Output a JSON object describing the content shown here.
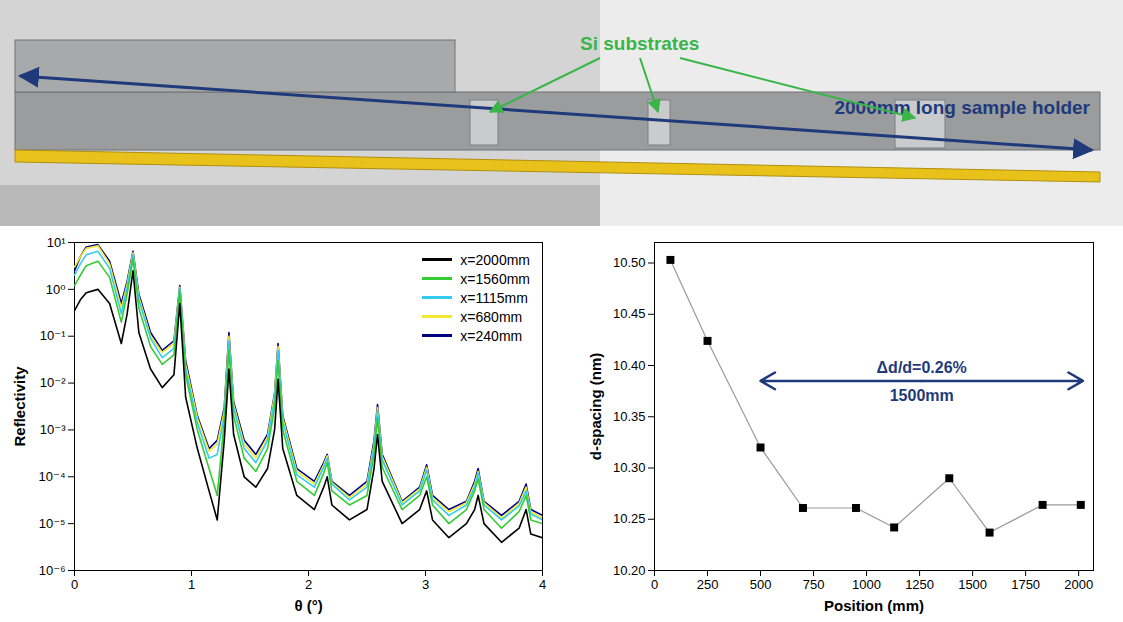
{
  "photo": {
    "annotations": [
      {
        "text": "Si substrates",
        "color": "#39b54a"
      },
      {
        "text": "2000mm long sample holder",
        "color": "#1f3a7a"
      }
    ]
  },
  "chart_data": [
    {
      "type": "line",
      "xlabel": "θ (°)",
      "ylabel": "Reflectivity",
      "log": "y",
      "legend": "top-right",
      "xlim": [
        0,
        4
      ],
      "xticks": [
        0,
        1,
        2,
        3,
        4
      ],
      "ylim": [
        1e-06,
        10
      ],
      "yticks": [
        {
          "value": 1e-06,
          "label": "10⁻⁶"
        },
        {
          "value": 1e-05,
          "label": "10⁻⁵"
        },
        {
          "value": 0.0001,
          "label": "10⁻⁴"
        },
        {
          "value": 0.001,
          "label": "10⁻³"
        },
        {
          "value": 0.01,
          "label": "10⁻²"
        },
        {
          "value": 0.1,
          "label": "10⁻¹"
        },
        {
          "value": 1,
          "label": "10⁰"
        },
        {
          "value": 10,
          "label": "10¹"
        }
      ],
      "x": [
        0,
        0.05,
        0.1,
        0.2,
        0.3,
        0.4,
        0.45,
        0.5,
        0.55,
        0.65,
        0.75,
        0.85,
        0.9,
        0.95,
        1.05,
        1.15,
        1.22,
        1.28,
        1.32,
        1.36,
        1.45,
        1.55,
        1.65,
        1.71,
        1.74,
        1.78,
        1.9,
        2.05,
        2.13,
        2.16,
        2.2,
        2.35,
        2.5,
        2.56,
        2.59,
        2.63,
        2.8,
        2.95,
        3.01,
        3.06,
        3.2,
        3.35,
        3.42,
        3.45,
        3.5,
        3.65,
        3.8,
        3.86,
        3.9,
        4.0
      ],
      "series": [
        {
          "name": "x=2000mm",
          "color": "#000000",
          "values": [
            0.35,
            0.6,
            0.85,
            1,
            0.5,
            0.07,
            0.3,
            2.5,
            0.12,
            0.02,
            0.008,
            0.015,
            0.5,
            0.005,
            0.0004,
            5e-05,
            1.2e-05,
            0.0006,
            0.02,
            0.0008,
            0.0001,
            6e-05,
            0.00015,
            0.001,
            0.012,
            0.0004,
            4e-05,
            2e-05,
            6e-05,
            0.0001,
            2.5e-05,
            1.2e-05,
            2e-05,
            0.00015,
            0.0008,
            8e-05,
            1e-05,
            2e-05,
            5e-05,
            1.2e-05,
            5e-06,
            1e-05,
            2e-05,
            4e-05,
            1e-05,
            4e-06,
            8e-06,
            2e-05,
            6e-06,
            5e-06
          ]
        },
        {
          "name": "x=1560mm",
          "color": "#33cc33",
          "values": [
            1.2,
            2,
            3.2,
            4,
            1.8,
            0.2,
            0.8,
            4.5,
            0.4,
            0.06,
            0.025,
            0.04,
            0.9,
            0.015,
            0.001,
            0.00015,
            4e-05,
            0.0015,
            0.05,
            0.002,
            0.00025,
            0.00013,
            0.0004,
            0.003,
            0.03,
            0.001,
            8e-05,
            4e-05,
            0.00012,
            0.0002,
            5e-05,
            2.5e-05,
            4e-05,
            0.0003,
            0.0018,
            0.00016,
            2e-05,
            4e-05,
            0.0001,
            2.5e-05,
            1e-05,
            2e-05,
            5e-05,
            9e-05,
            2e-05,
            8e-06,
            1.8e-05,
            4e-05,
            1.2e-05,
            1e-05
          ]
        },
        {
          "name": "x=1115mm",
          "color": "#33ccee",
          "values": [
            2,
            3.5,
            5.5,
            6.5,
            2.8,
            0.3,
            1.1,
            5.5,
            0.6,
            0.09,
            0.035,
            0.055,
            1.05,
            0.02,
            0.0014,
            0.00025,
            0.0003,
            0.002,
            0.08,
            0.003,
            0.0004,
            0.0002,
            0.0006,
            0.0045,
            0.05,
            0.0015,
            0.00011,
            6e-05,
            0.00016,
            0.00025,
            7e-05,
            3.2e-05,
            6e-05,
            0.00045,
            0.0026,
            0.00023,
            2.5e-05,
            5e-05,
            0.00014,
            3.2e-05,
            1.5e-05,
            2.5e-05,
            6e-05,
            0.00012,
            2.5e-05,
            1.2e-05,
            2.4e-05,
            5e-05,
            1.6e-05,
            1.2e-05
          ]
        },
        {
          "name": "x=680mm",
          "color": "#f2e830",
          "values": [
            3,
            5,
            7.5,
            8.5,
            3.5,
            0.4,
            1.3,
            6,
            0.7,
            0.1,
            0.045,
            0.07,
            1.1,
            0.025,
            0.0018,
            0.00035,
            0.0005,
            0.0025,
            0.1,
            0.0035,
            0.0005,
            0.00025,
            0.0007,
            0.0055,
            0.06,
            0.0018,
            0.00013,
            7e-05,
            0.00018,
            0.00028,
            7.5e-05,
            3.6e-05,
            7e-05,
            0.0005,
            0.003,
            0.00027,
            2.8e-05,
            5.5e-05,
            0.00016,
            3.6e-05,
            1.8e-05,
            2.8e-05,
            7e-05,
            0.00013,
            2.8e-05,
            1.3e-05,
            2.7e-05,
            6e-05,
            1.8e-05,
            1.3e-05
          ]
        },
        {
          "name": "x=240mm",
          "color": "#000080",
          "values": [
            2.5,
            5,
            8,
            9,
            4,
            0.5,
            1.5,
            6.5,
            0.8,
            0.12,
            0.05,
            0.08,
            1.2,
            0.03,
            0.002,
            0.0004,
            0.0006,
            0.003,
            0.12,
            0.004,
            0.0006,
            0.0003,
            0.0008,
            0.006,
            0.07,
            0.002,
            0.00015,
            8e-05,
            0.0002,
            0.0003,
            8e-05,
            4e-05,
            8e-05,
            0.0006,
            0.0035,
            0.0003,
            3e-05,
            6e-05,
            0.00018,
            4e-05,
            2e-05,
            3e-05,
            8e-05,
            0.00015,
            3e-05,
            1.5e-05,
            3e-05,
            7e-05,
            2e-05,
            1.5e-05
          ]
        }
      ]
    },
    {
      "type": "line",
      "xlabel": "Position (mm)",
      "ylabel": "d-spacing (nm)",
      "marker": "square",
      "color": "#000000",
      "xlim": [
        0,
        2070
      ],
      "xticks": [
        0,
        250,
        500,
        750,
        1000,
        1250,
        1500,
        1750,
        2000
      ],
      "ylim": [
        10.2,
        10.52
      ],
      "yticks": [
        {
          "value": 10.2,
          "label": "10.20"
        },
        {
          "value": 10.25,
          "label": "10.25"
        },
        {
          "value": 10.3,
          "label": "10.30"
        },
        {
          "value": 10.35,
          "label": "10.35"
        },
        {
          "value": 10.4,
          "label": "10.40"
        },
        {
          "value": 10.45,
          "label": "10.45"
        },
        {
          "value": 10.5,
          "label": "10.50"
        }
      ],
      "x": [
        75,
        250,
        500,
        700,
        950,
        1130,
        1390,
        1580,
        1830,
        2010
      ],
      "values": [
        10.503,
        10.424,
        10.32,
        10.261,
        10.261,
        10.242,
        10.29,
        10.237,
        10.264,
        10.264
      ],
      "annotations": [
        {
          "label_above": "Δd/d=0.26%",
          "label_below": "1500mm",
          "x": [
            500,
            2020
          ],
          "y": 10.385,
          "color": "#1f3a7a"
        }
      ]
    }
  ]
}
